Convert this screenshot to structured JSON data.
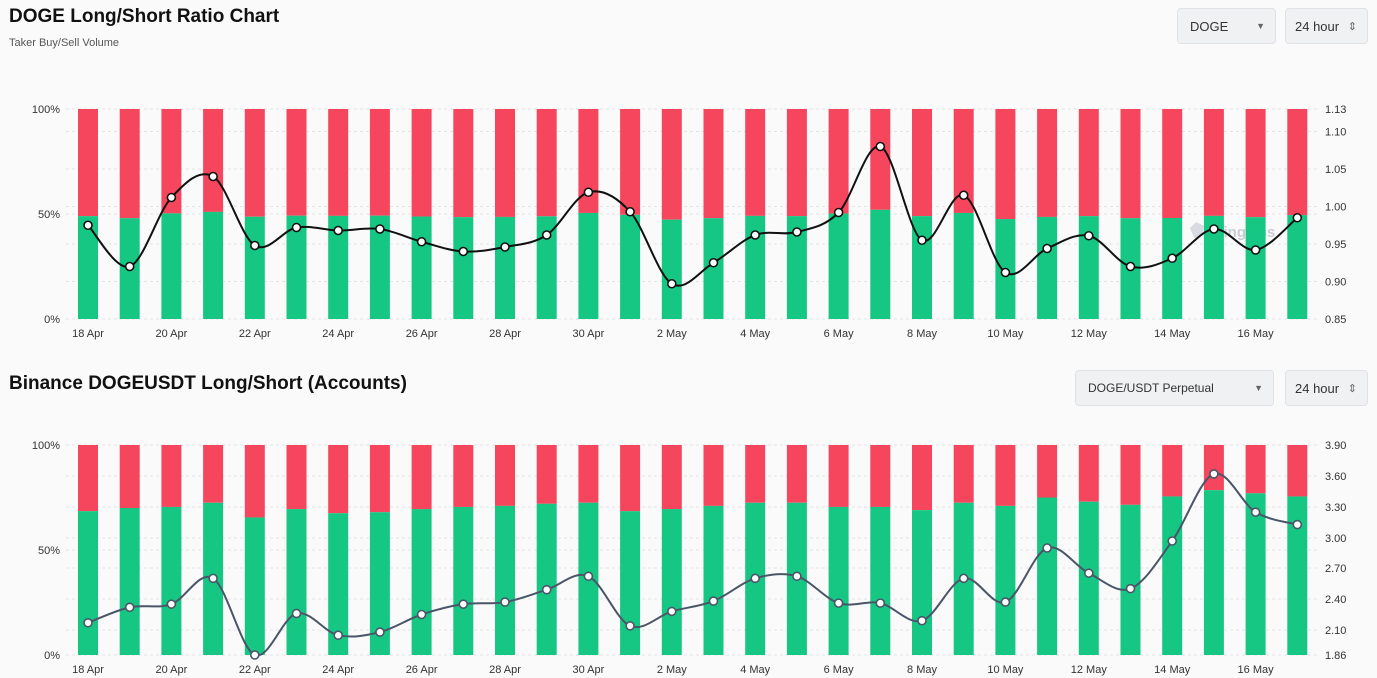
{
  "charts": [
    {
      "title": "DOGE Long/Short Ratio Chart",
      "subtitle": "Taker Buy/Sell Volume",
      "controls": [
        {
          "value": "DOGE",
          "icon": "caret-down-icon"
        },
        {
          "value": "24 hour",
          "icon": "up-down-chevron-icon"
        }
      ]
    },
    {
      "title": "Binance DOGEUSDT Long/Short (Accounts)",
      "subtitle": "",
      "controls": [
        {
          "value": "DOGE/USDT Perpetual",
          "icon": "caret-down-icon"
        },
        {
          "value": "24 hour",
          "icon": "up-down-chevron-icon"
        }
      ]
    }
  ],
  "watermark": "coinglass",
  "colors": {
    "long": "#16c784",
    "short": "#f6465d",
    "line1": "#111111",
    "line2": "#4a5568"
  },
  "chart_data": [
    {
      "type": "bar",
      "stacked": true,
      "title": "DOGE Long/Short Ratio Chart",
      "subtitle": "Taker Buy/Sell Volume",
      "categories": [
        "18 Apr",
        "19 Apr",
        "20 Apr",
        "21 Apr",
        "22 Apr",
        "23 Apr",
        "24 Apr",
        "25 Apr",
        "26 Apr",
        "27 Apr",
        "28 Apr",
        "29 Apr",
        "30 Apr",
        "1 May",
        "2 May",
        "3 May",
        "4 May",
        "5 May",
        "6 May",
        "7 May",
        "8 May",
        "9 May",
        "10 May",
        "11 May",
        "12 May",
        "13 May",
        "14 May",
        "15 May",
        "16 May",
        "17 May"
      ],
      "x_tick_labels": [
        "18 Apr",
        "20 Apr",
        "22 Apr",
        "24 Apr",
        "26 Apr",
        "28 Apr",
        "30 Apr",
        "2 May",
        "4 May",
        "6 May",
        "8 May",
        "10 May",
        "12 May",
        "14 May",
        "16 May"
      ],
      "series": [
        {
          "kind": "bar",
          "values": [
            49.0,
            48.0,
            50.3,
            51.0,
            48.7,
            49.2,
            49.1,
            49.2,
            48.8,
            48.5,
            48.6,
            48.9,
            50.5,
            49.6,
            47.3,
            48.0,
            49.1,
            49.0,
            50.2,
            52.0,
            49.0,
            50.5,
            47.6,
            48.6,
            49.0,
            48.0,
            48.1,
            49.1,
            48.5,
            49.5
          ]
        },
        {
          "kind": "line",
          "axis": "right",
          "values": [
            0.975,
            0.92,
            1.012,
            1.04,
            0.948,
            0.972,
            0.968,
            0.97,
            0.953,
            0.94,
            0.946,
            0.962,
            1.019,
            0.993,
            0.897,
            0.925,
            0.962,
            0.966,
            0.992,
            1.08,
            0.955,
            1.015,
            0.912,
            0.944,
            0.961,
            0.92,
            0.931,
            0.97,
            0.942,
            0.985
          ]
        }
      ],
      "y_left": {
        "ticks": [
          "0%",
          "50%",
          "100%"
        ],
        "range": [
          0,
          100
        ]
      },
      "y_right": {
        "ticks": [
          0.85,
          0.9,
          0.95,
          1.0,
          1.05,
          1.1,
          1.13
        ],
        "range": [
          0.85,
          1.13
        ]
      },
      "grid": true
    },
    {
      "type": "bar",
      "stacked": true,
      "title": "Binance DOGEUSDT Long/Short (Accounts)",
      "categories": [
        "18 Apr",
        "19 Apr",
        "20 Apr",
        "21 Apr",
        "22 Apr",
        "23 Apr",
        "24 Apr",
        "25 Apr",
        "26 Apr",
        "27 Apr",
        "28 Apr",
        "29 Apr",
        "30 Apr",
        "1 May",
        "2 May",
        "3 May",
        "4 May",
        "5 May",
        "6 May",
        "7 May",
        "8 May",
        "9 May",
        "10 May",
        "11 May",
        "12 May",
        "13 May",
        "14 May",
        "15 May",
        "16 May",
        "17 May"
      ],
      "x_tick_labels": [
        "18 Apr",
        "20 Apr",
        "22 Apr",
        "24 Apr",
        "26 Apr",
        "28 Apr",
        "30 Apr",
        "2 May",
        "4 May",
        "6 May",
        "8 May",
        "10 May",
        "12 May",
        "14 May",
        "16 May"
      ],
      "series": [
        {
          "kind": "bar",
          "values": [
            68.5,
            70.0,
            70.5,
            72.5,
            65.5,
            69.5,
            67.5,
            68.0,
            69.5,
            70.5,
            71.0,
            72.0,
            72.5,
            68.5,
            69.5,
            71.0,
            72.5,
            72.5,
            70.5,
            70.5,
            69.0,
            72.5,
            71.0,
            75.0,
            73.0,
            71.5,
            75.5,
            78.5,
            77.0,
            75.5
          ]
        },
        {
          "kind": "line",
          "axis": "right",
          "values": [
            2.17,
            2.32,
            2.35,
            2.6,
            1.86,
            2.26,
            2.05,
            2.08,
            2.25,
            2.35,
            2.37,
            2.49,
            2.62,
            2.14,
            2.28,
            2.38,
            2.6,
            2.62,
            2.36,
            2.36,
            2.19,
            2.6,
            2.37,
            2.9,
            2.65,
            2.5,
            2.97,
            3.62,
            3.25,
            3.13
          ]
        }
      ],
      "y_left": {
        "ticks": [
          "0%",
          "50%",
          "100%"
        ],
        "range": [
          0,
          100
        ]
      },
      "y_right": {
        "ticks": [
          1.86,
          2.1,
          2.4,
          2.7,
          3.0,
          3.3,
          3.6,
          3.9
        ],
        "range": [
          1.86,
          3.9
        ]
      },
      "grid": true
    }
  ]
}
